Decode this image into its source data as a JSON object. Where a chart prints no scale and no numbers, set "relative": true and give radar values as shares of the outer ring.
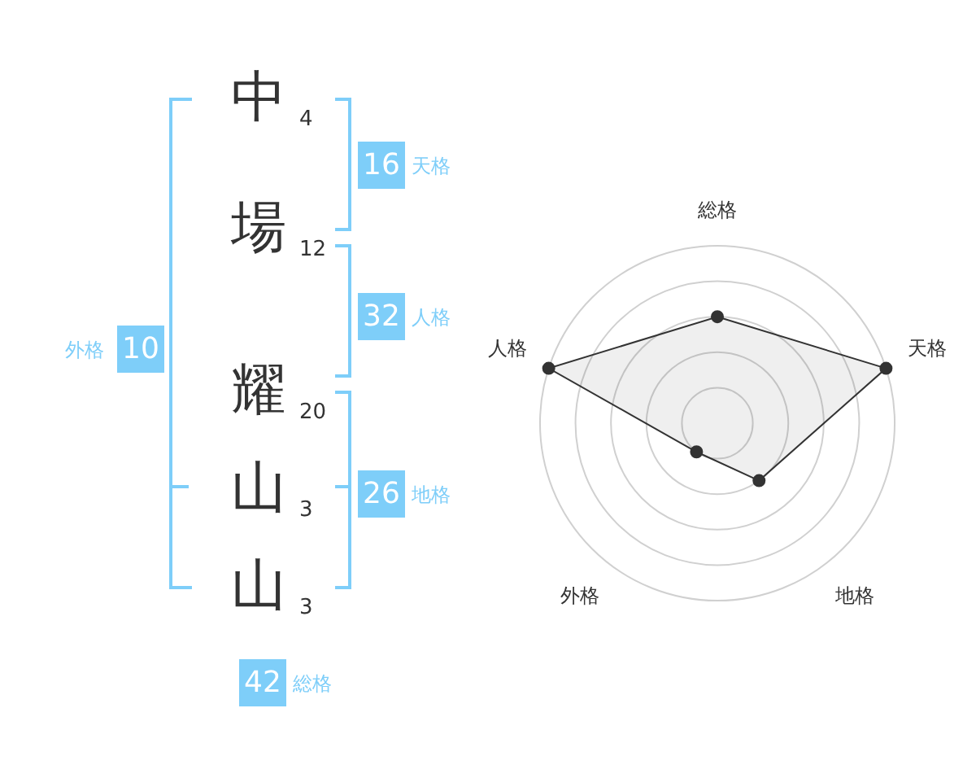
{
  "chart_data": [
    {
      "type": "other",
      "categories": [
        "中",
        "場",
        "耀",
        "山",
        "山"
      ],
      "values": [
        4,
        12,
        20,
        3,
        3
      ],
      "data_labels": true,
      "annotations": [
        "16",
        "天格",
        "32",
        "人格",
        "26",
        "地格",
        "10",
        "外格",
        "42",
        "総格"
      ],
      "color": "#7ecef9"
    },
    {
      "type": "radar",
      "categories": [
        "総格",
        "天格",
        "地格",
        "外格",
        "人格"
      ],
      "relative": true,
      "grid": true,
      "marker": "circle",
      "legend": false,
      "series": [
        {
          "color": "#333333",
          "values": [
            0.6,
            1,
            0.4,
            0.2,
            1
          ]
        }
      ]
    }
  ]
}
